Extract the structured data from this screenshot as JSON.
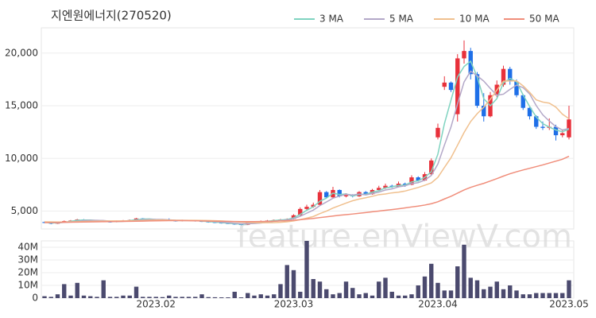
{
  "chart_data": {
    "type": "candlestick",
    "title": "지엔원에너지(270520)",
    "watermark": "feature.enViewV.com",
    "categories": [
      null,
      null,
      null,
      null,
      null,
      null,
      null,
      null,
      null,
      null,
      null,
      null,
      null,
      null,
      null,
      null,
      null,
      "2023.02",
      null,
      null,
      null,
      null,
      null,
      null,
      null,
      null,
      null,
      null,
      null,
      null,
      null,
      null,
      null,
      null,
      null,
      null,
      null,
      null,
      "2023.03",
      null,
      null,
      null,
      null,
      null,
      null,
      null,
      null,
      null,
      null,
      null,
      null,
      null,
      null,
      null,
      null,
      null,
      null,
      null,
      null,
      null,
      "2023.04",
      null,
      null,
      null,
      null,
      null,
      null,
      null,
      null,
      null,
      null,
      null,
      null,
      null,
      null,
      null,
      null,
      null,
      null,
      null,
      "2023.05"
    ],
    "open": [
      3950,
      3900,
      3800,
      3950,
      4050,
      4100,
      4200,
      4150,
      4100,
      4050,
      4000,
      3950,
      4050,
      4100,
      4150,
      4300,
      4250,
      4200,
      4150,
      4150,
      4100,
      4050,
      4150,
      4100,
      4050,
      4000,
      3950,
      3900,
      3850,
      3800,
      3750,
      3700,
      3900,
      3950,
      4050,
      4100,
      4150,
      4200,
      4250,
      4600,
      5200,
      5400,
      5600,
      6800,
      6300,
      7000,
      6400,
      6500,
      6400,
      6800,
      6600,
      7000,
      7200,
      7400,
      7300,
      7600,
      7500,
      8200,
      7900,
      8500,
      12000,
      16800,
      17200,
      14200,
      19500,
      20200,
      18000,
      15000,
      14000,
      16000,
      17000,
      18500,
      17300,
      16000,
      14800,
      14000,
      13000,
      12900,
      13000,
      12200,
      12000
    ],
    "high": [
      4000,
      3950,
      4000,
      4100,
      4150,
      4250,
      4230,
      4180,
      4130,
      4100,
      4050,
      4100,
      4150,
      4200,
      4350,
      4330,
      4280,
      4240,
      4200,
      4300,
      4130,
      4180,
      4170,
      4130,
      4080,
      4030,
      3980,
      3930,
      3880,
      3830,
      3780,
      3950,
      4000,
      4100,
      4150,
      4200,
      4250,
      4300,
      4700,
      5350,
      5600,
      5800,
      7000,
      6900,
      7300,
      7050,
      6700,
      6600,
      6900,
      6900,
      7100,
      7400,
      7600,
      7500,
      7800,
      7700,
      8400,
      8300,
      8700,
      10000,
      13300,
      17800,
      17300,
      19900,
      21200,
      20500,
      18200,
      16200,
      16300,
      17400,
      18800,
      18700,
      17500,
      16100,
      14900,
      14100,
      13500,
      13800,
      13200,
      12700,
      15000
    ],
    "low": [
      3850,
      3750,
      3780,
      3920,
      4000,
      4080,
      4100,
      4060,
      4000,
      3960,
      3900,
      3930,
      4020,
      4080,
      4120,
      4200,
      4150,
      4100,
      4100,
      4060,
      4000,
      4020,
      4060,
      4000,
      3960,
      3900,
      3860,
      3810,
      3760,
      3700,
      3660,
      3680,
      3870,
      3920,
      4020,
      4080,
      4120,
      4150,
      4200,
      4550,
      5100,
      5300,
      5550,
      6200,
      6250,
      6300,
      6300,
      6300,
      6350,
      6500,
      6550,
      6950,
      7100,
      7200,
      7250,
      7300,
      7450,
      7800,
      7850,
      8400,
      11800,
      16500,
      16300,
      13500,
      19000,
      17500,
      14800,
      13500,
      13900,
      15800,
      16800,
      17000,
      15800,
      14600,
      13700,
      12800,
      12700,
      12700,
      11700,
      12000,
      11800
    ],
    "close": [
      3900,
      3800,
      3950,
      4050,
      4100,
      4200,
      4150,
      4100,
      4050,
      4000,
      3950,
      4050,
      4100,
      4150,
      4300,
      4250,
      4200,
      4150,
      4150,
      4100,
      4050,
      4150,
      4100,
      4050,
      4000,
      3950,
      3900,
      3850,
      3800,
      3750,
      3700,
      3900,
      3950,
      4050,
      4100,
      4150,
      4200,
      4250,
      4600,
      5200,
      5400,
      5600,
      6800,
      6300,
      7000,
      6400,
      6500,
      6400,
      6800,
      6600,
      7000,
      7200,
      7400,
      7300,
      7600,
      7500,
      8200,
      7900,
      8500,
      9800,
      12900,
      17200,
      16500,
      19500,
      20200,
      18000,
      15000,
      14000,
      16000,
      17000,
      18500,
      17300,
      16000,
      14800,
      14000,
      13000,
      12900,
      13000,
      12200,
      12400,
      13700
    ],
    "volume": [
      1500000,
      1000000,
      3000000,
      11000000,
      2000000,
      12000000,
      2000000,
      1500000,
      1000000,
      14000000,
      1000000,
      1000000,
      2000000,
      2000000,
      9000000,
      1000000,
      1000000,
      1000000,
      800000,
      2000000,
      1000000,
      1000000,
      1000000,
      1000000,
      3000000,
      800000,
      700000,
      600000,
      600000,
      5000000,
      600000,
      4000000,
      2000000,
      3000000,
      2000000,
      3000000,
      11000000,
      26000000,
      22000000,
      5000000,
      45000000,
      15000000,
      13000000,
      7000000,
      3000000,
      4000000,
      13000000,
      8000000,
      3000000,
      4000000,
      2000000,
      13000000,
      16000000,
      5000000,
      2000000,
      2000000,
      3000000,
      10000000,
      17000000,
      27000000,
      12000000,
      6000000,
      6000000,
      25000000,
      42000000,
      16000000,
      14000000,
      7000000,
      9000000,
      13000000,
      7000000,
      10000000,
      6000000,
      3000000,
      3000000,
      4000000,
      4000000,
      4000000,
      4000000,
      4000000,
      14000000
    ],
    "series": [
      {
        "name": "3 MA",
        "color": "#7fd3c0",
        "values": [
          3920,
          3880,
          3880,
          3930,
          4030,
          4120,
          4150,
          4150,
          4100,
          4050,
          4000,
          4000,
          4030,
          4100,
          4180,
          4230,
          4250,
          4200,
          4170,
          4130,
          4100,
          4100,
          4100,
          4100,
          4050,
          4000,
          3950,
          3900,
          3850,
          3800,
          3750,
          3780,
          3850,
          3970,
          4030,
          4100,
          4150,
          4200,
          4350,
          4680,
          5070,
          5400,
          5930,
          6230,
          6700,
          6570,
          6630,
          6430,
          6570,
          6600,
          6800,
          6930,
          7200,
          7300,
          7430,
          7470,
          7770,
          7870,
          8200,
          8730,
          10400,
          13300,
          15530,
          17730,
          18730,
          19230,
          17730,
          15670,
          15000,
          15670,
          17170,
          17600,
          17270,
          16030,
          14930,
          13930,
          13300,
          12970,
          12700,
          12530,
          12770
        ]
      },
      {
        "name": "5 MA",
        "color": "#b3a8c8",
        "values": [
          3950,
          3920,
          3900,
          3920,
          3960,
          4020,
          4090,
          4120,
          4120,
          4100,
          4050,
          4030,
          4030,
          4050,
          4110,
          4170,
          4210,
          4210,
          4210,
          4170,
          4130,
          4120,
          4110,
          4090,
          4070,
          4050,
          4010,
          3950,
          3900,
          3850,
          3800,
          3800,
          3820,
          3870,
          3940,
          4030,
          4090,
          4150,
          4270,
          4500,
          4800,
          5090,
          5520,
          5860,
          6220,
          6420,
          6600,
          6520,
          6620,
          6540,
          6660,
          6800,
          7000,
          7100,
          7300,
          7400,
          7600,
          7700,
          7940,
          8380,
          9460,
          11260,
          12980,
          15180,
          17260,
          18280,
          17840,
          17340,
          16640,
          16000,
          16100,
          16560,
          16960,
          16720,
          16120,
          15020,
          14140,
          13540,
          13020,
          12700,
          12840
        ]
      },
      {
        "name": "10 MA",
        "color": "#f0c08e",
        "values": [
          3980,
          3970,
          3960,
          3960,
          3970,
          3990,
          4010,
          4030,
          4040,
          4050,
          4060,
          4060,
          4060,
          4070,
          4080,
          4100,
          4130,
          4150,
          4160,
          4140,
          4130,
          4120,
          4120,
          4120,
          4110,
          4100,
          4080,
          4060,
          4030,
          3990,
          3950,
          3920,
          3900,
          3890,
          3890,
          3900,
          3930,
          3980,
          4060,
          4190,
          4330,
          4480,
          4760,
          4990,
          5290,
          5520,
          5760,
          5980,
          6140,
          6260,
          6400,
          6560,
          6620,
          6730,
          6790,
          6900,
          7070,
          7240,
          7450,
          7670,
          8200,
          9140,
          10060,
          11250,
          12460,
          13500,
          14250,
          14860,
          15610,
          16490,
          17330,
          17370,
          17360,
          16890,
          16270,
          15560,
          15350,
          15250,
          14870,
          14200,
          13770
        ]
      },
      {
        "name": "50 MA",
        "color": "#f08d7a",
        "values": [
          3900,
          3910,
          3920,
          3930,
          3940,
          3950,
          3960,
          3970,
          3980,
          3990,
          4000,
          4010,
          4020,
          4030,
          4040,
          4050,
          4060,
          4070,
          4080,
          4090,
          4090,
          4090,
          4080,
          4070,
          4060,
          4050,
          4040,
          4030,
          4020,
          4010,
          4000,
          4000,
          4000,
          4010,
          4020,
          4040,
          4060,
          4080,
          4120,
          4180,
          4240,
          4300,
          4380,
          4450,
          4530,
          4600,
          4660,
          4720,
          4790,
          4860,
          4930,
          5000,
          5070,
          5140,
          5220,
          5300,
          5390,
          5470,
          5570,
          5700,
          5880,
          6150,
          6400,
          6700,
          7000,
          7250,
          7450,
          7630,
          7850,
          8080,
          8320,
          8540,
          8730,
          8900,
          9060,
          9220,
          9380,
          9560,
          9740,
          9920,
          10200
        ]
      }
    ],
    "up_color": "#e8313b",
    "down_color": "#1e6fe8",
    "volume_color": "#4b4a6e",
    "ylim": [
      3300,
      22400
    ],
    "yticks": [
      {
        "value": 5000,
        "label": "5,000"
      },
      {
        "value": 10000,
        "label": "10,000"
      },
      {
        "value": 15000,
        "label": "15,000"
      },
      {
        "value": 20000,
        "label": "20,000"
      }
    ],
    "volume_ylim": [
      0,
      45000000
    ],
    "volume_yticks": [
      0,
      {
        "value": 10000000,
        "label": "10M"
      },
      {
        "value": 20000000,
        "label": "20M"
      },
      {
        "value": 30000000,
        "label": "30M"
      },
      {
        "value": 40000000,
        "label": "40M"
      }
    ],
    "grid": true,
    "legend": "top-right"
  }
}
